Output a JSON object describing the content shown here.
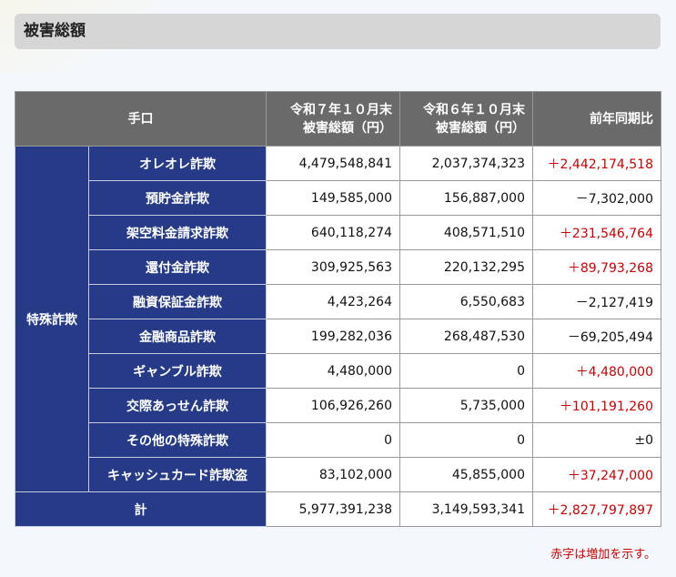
{
  "header": {
    "title": "被害総額"
  },
  "table": {
    "columns": [
      [
        "手口"
      ],
      [
        "令和７年１０月末",
        "被害総額（円）"
      ],
      [
        "令和６年１０月末",
        "被害総額（円）"
      ],
      [
        "前年同期比"
      ]
    ],
    "group": "特殊詐欺",
    "rows": [
      {
        "name": "オレオレ詐欺",
        "current": "4,479,548,841",
        "previous": "2,037,374,323",
        "diff": "＋2,442,174,518",
        "diff_color": "#cc0000"
      },
      {
        "name": "預貯金詐欺",
        "current": "149,585,000",
        "previous": "156,887,000",
        "diff": "－7,302,000",
        "diff_color": "#111111"
      },
      {
        "name": "架空料金請求詐欺",
        "current": "640,118,274",
        "previous": "408,571,510",
        "diff": "＋231,546,764",
        "diff_color": "#cc0000"
      },
      {
        "name": "還付金詐欺",
        "current": "309,925,563",
        "previous": "220,132,295",
        "diff": "＋89,793,268",
        "diff_color": "#cc0000"
      },
      {
        "name": "融資保証金詐欺",
        "current": "4,423,264",
        "previous": "6,550,683",
        "diff": "－2,127,419",
        "diff_color": "#111111"
      },
      {
        "name": "金融商品詐欺",
        "current": "199,282,036",
        "previous": "268,487,530",
        "diff": "－69,205,494",
        "diff_color": "#111111"
      },
      {
        "name": "ギャンブル詐欺",
        "current": "4,480,000",
        "previous": "0",
        "diff": "＋4,480,000",
        "diff_color": "#cc0000"
      },
      {
        "name": "交際あっせん詐欺",
        "current": "106,926,260",
        "previous": "5,735,000",
        "diff": "＋101,191,260",
        "diff_color": "#cc0000"
      },
      {
        "name": "その他の特殊詐欺",
        "current": "0",
        "previous": "0",
        "diff": "±0",
        "diff_color": "#111111"
      },
      {
        "name": "キャッシュカード詐欺盗",
        "current": "83,102,000",
        "previous": "45,855,000",
        "diff": "＋37,247,000",
        "diff_color": "#cc0000"
      }
    ],
    "total": {
      "name": "計",
      "current": "5,977,391,238",
      "previous": "3,149,593,341",
      "diff": "＋2,827,797,897",
      "diff_color": "#cc0000"
    }
  },
  "note": "赤字は増加を示す。"
}
